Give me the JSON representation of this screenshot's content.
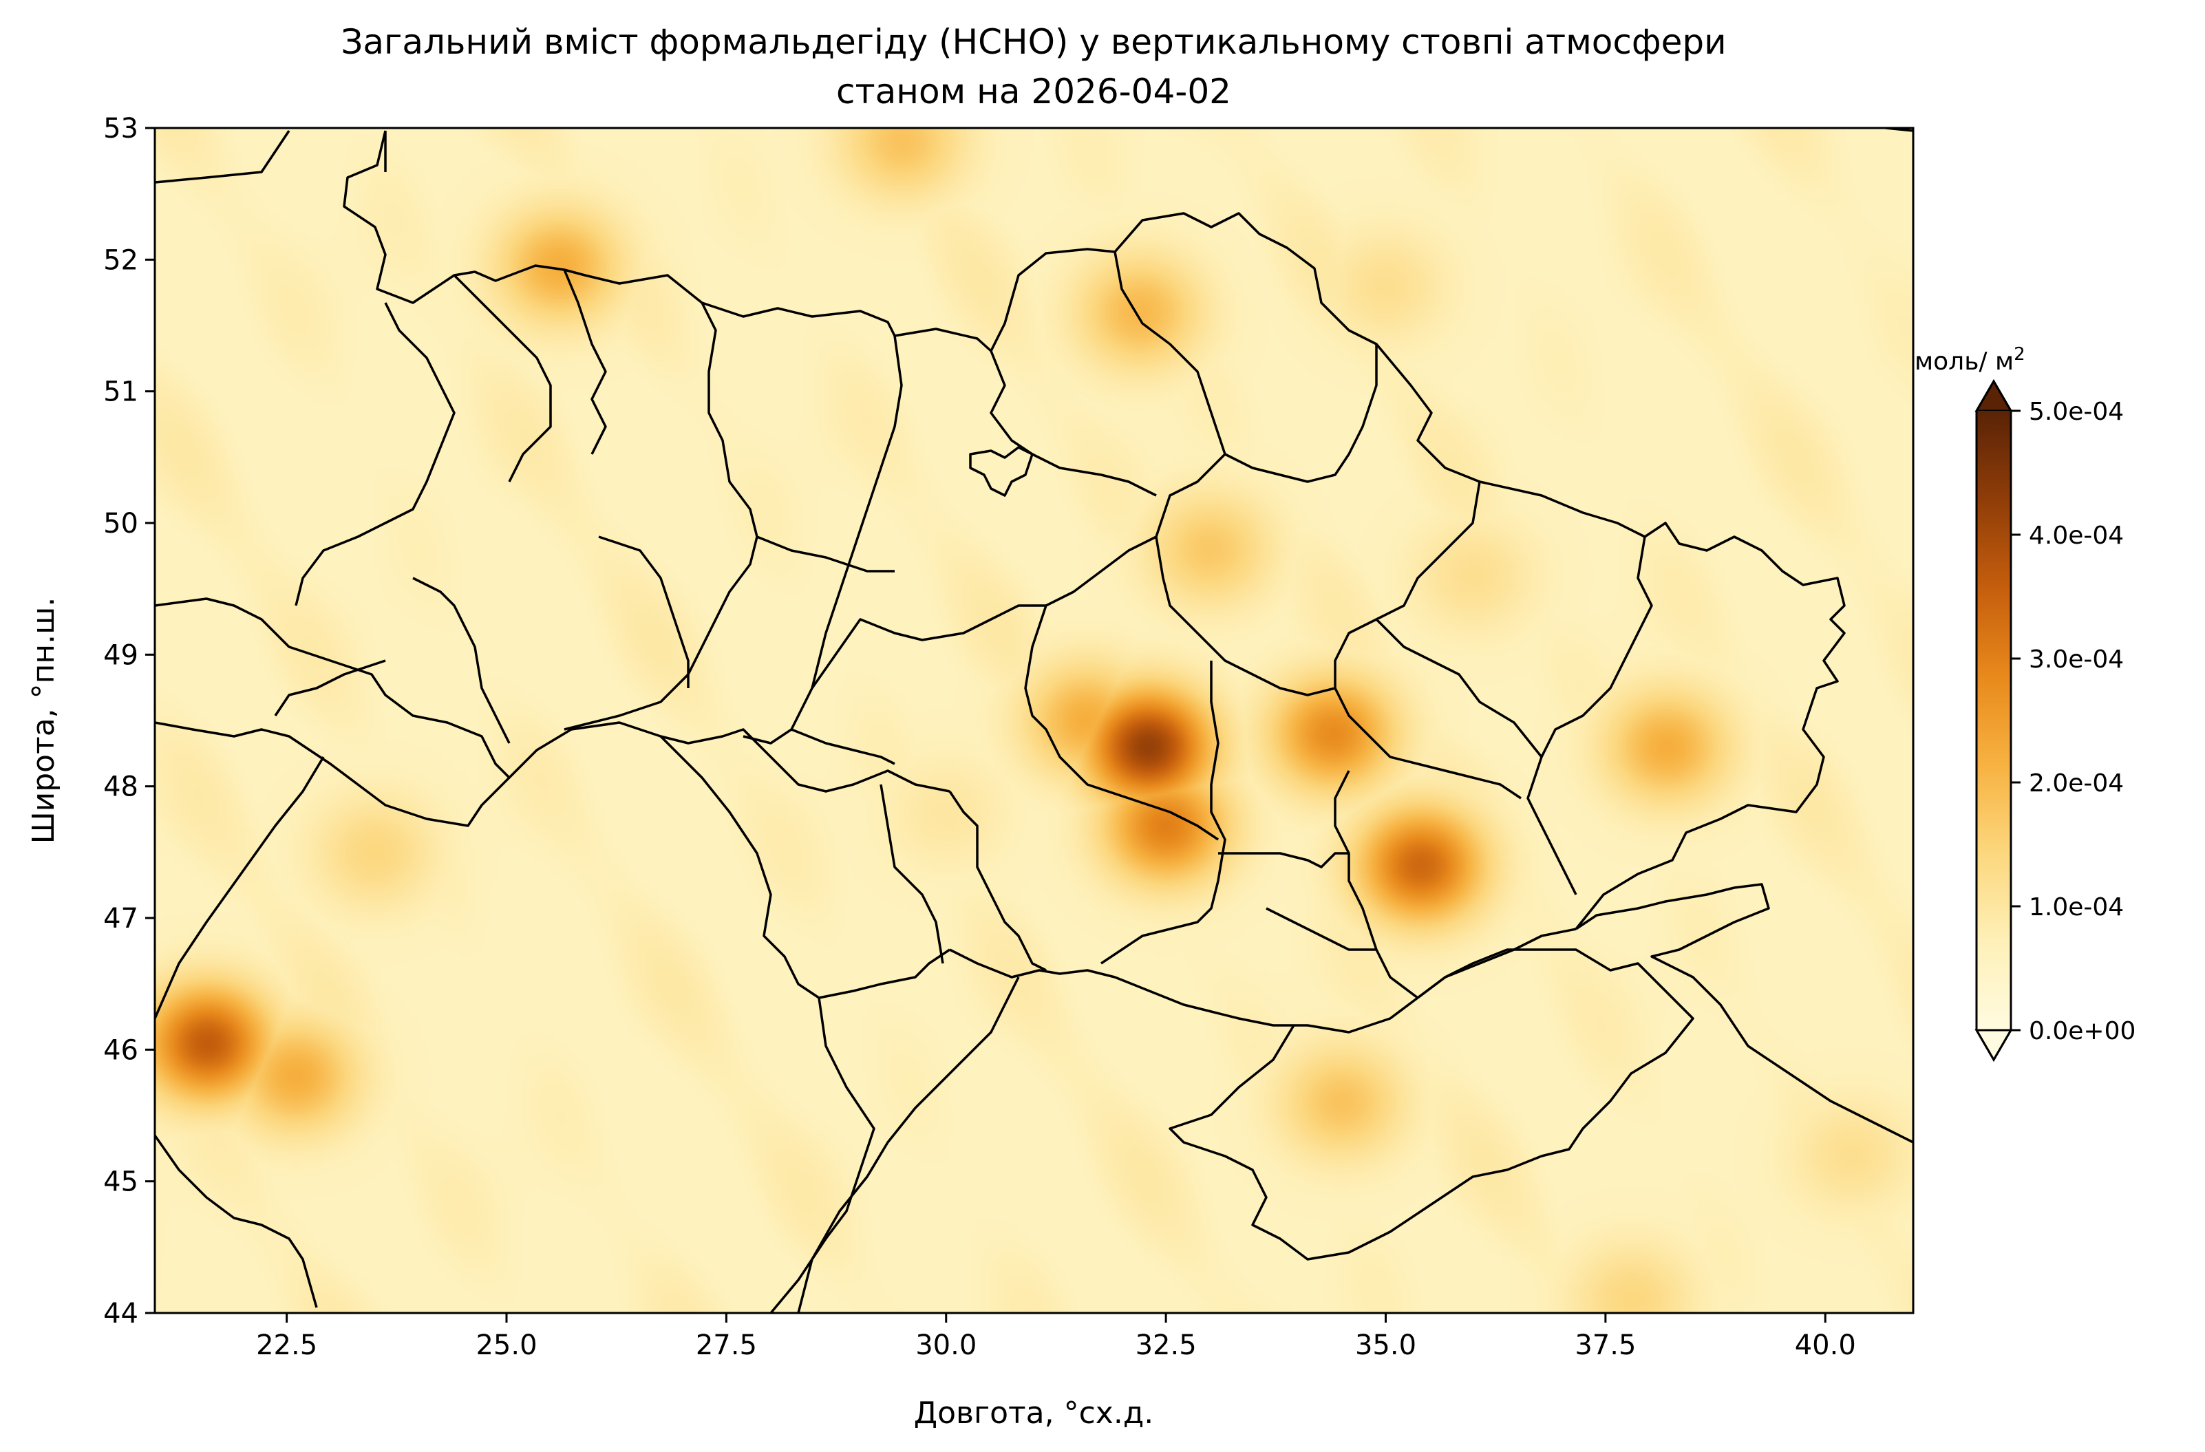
{
  "title_line1": "Загальний вміст формальдегіду (HCHO) у вертикальному стовпі атмосфери",
  "title_line2": "станом на 2026-04-02",
  "xlabel": "Довгота, °сх.д.",
  "ylabel": "Широта, °пн.ш.",
  "x_ticks": [
    "22.5",
    "25.0",
    "27.5",
    "30.0",
    "32.5",
    "35.0",
    "37.5",
    "40.0"
  ],
  "y_ticks": [
    "44",
    "45",
    "46",
    "47",
    "48",
    "49",
    "50",
    "51",
    "52",
    "53"
  ],
  "colorbar": {
    "unit_label": "моль/ м",
    "unit_sup": "2",
    "ticks": [
      "0.0e+00",
      "1.0e-04",
      "2.0e-04",
      "3.0e-04",
      "4.0e-04",
      "5.0e-04"
    ],
    "colormap": [
      "#fffbe0",
      "#fef0b8",
      "#fcd77e",
      "#f7b241",
      "#e8891c",
      "#c55e0d",
      "#8f3d08",
      "#5a2306"
    ]
  },
  "map": {
    "extent": {
      "lon": [
        21.0,
        41.0
      ],
      "lat": [
        44.0,
        53.0
      ]
    },
    "value_range": [
      0,
      0.0005
    ],
    "background_value": 6e-05,
    "hotspots": [
      {
        "lon": 32.3,
        "lat": 48.3,
        "value": 0.00042
      },
      {
        "lon": 32.5,
        "lat": 47.7,
        "value": 0.0003
      },
      {
        "lon": 31.6,
        "lat": 48.5,
        "value": 0.00022
      },
      {
        "lon": 35.4,
        "lat": 47.4,
        "value": 0.00034
      },
      {
        "lon": 34.4,
        "lat": 48.4,
        "value": 0.00028
      },
      {
        "lon": 38.2,
        "lat": 48.3,
        "value": 0.00022
      },
      {
        "lon": 21.6,
        "lat": 46.05,
        "value": 0.00036
      },
      {
        "lon": 22.6,
        "lat": 45.8,
        "value": 0.00022
      },
      {
        "lon": 25.6,
        "lat": 51.95,
        "value": 0.00022
      },
      {
        "lon": 32.2,
        "lat": 51.6,
        "value": 0.0002
      },
      {
        "lon": 29.5,
        "lat": 52.9,
        "value": 0.00018
      },
      {
        "lon": 34.5,
        "lat": 45.6,
        "value": 0.00018
      },
      {
        "lon": 33.0,
        "lat": 49.8,
        "value": 0.00017
      },
      {
        "lon": 36.0,
        "lat": 49.6,
        "value": 0.00012
      },
      {
        "lon": 37.8,
        "lat": 44.1,
        "value": 0.00014
      },
      {
        "lon": 40.3,
        "lat": 45.2,
        "value": 0.00012
      },
      {
        "lon": 23.5,
        "lat": 47.5,
        "value": 0.00014
      },
      {
        "lon": 30.0,
        "lat": 47.8,
        "value": 0.0001
      },
      {
        "lon": 35.0,
        "lat": 51.8,
        "value": 0.00012
      }
    ]
  }
}
